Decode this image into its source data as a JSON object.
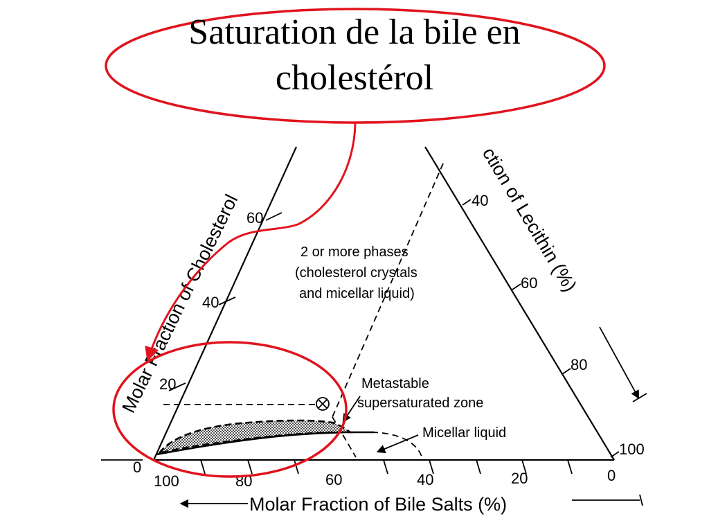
{
  "slide": {
    "title_line1": "Saturation de la bile en",
    "title_line2": "cholestérol"
  },
  "diagram": {
    "type": "ternary phase diagram",
    "axes": {
      "cholesterol": {
        "title": "Molar Fraction of Cholesterol",
        "ticks": [
          "0",
          "20",
          "40",
          "60"
        ]
      },
      "lecithin": {
        "title": "ction of Lecithin (%)",
        "ticks": [
          "40",
          "60",
          "80",
          "100"
        ]
      },
      "bile_salts": {
        "title": "Molar Fraction of Bile Salts (%)",
        "ticks": [
          "100",
          "80",
          "60",
          "40",
          "20",
          "0"
        ]
      }
    },
    "regions": {
      "phases_line1": "2 or more phases",
      "phases_line2": "(cholesterol crystals",
      "phases_line3": "and micellar liquid)",
      "metastable_line1": "Metastable",
      "metastable_line2": "supersaturated  zone",
      "micellar": "Micellar liquid"
    },
    "colors": {
      "highlight": "#e0141e",
      "ink": "#000000",
      "hatch": "#555555"
    }
  }
}
